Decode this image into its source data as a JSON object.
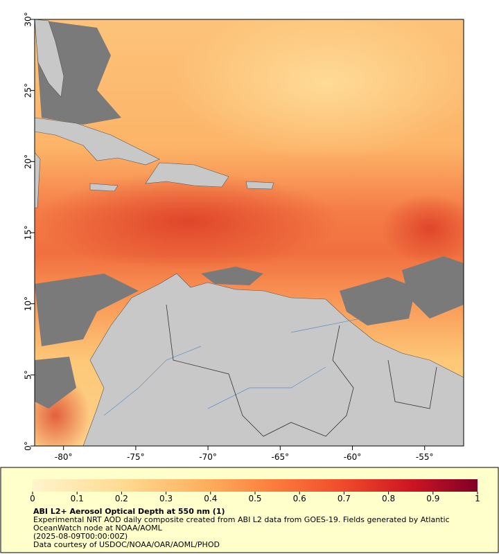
{
  "map": {
    "xlim": [
      -82,
      -52.3
    ],
    "ylim": [
      0,
      30
    ],
    "xticks": [
      {
        "value": -80,
        "label": "-80°"
      },
      {
        "value": -75,
        "label": "-75°"
      },
      {
        "value": -70,
        "label": "-70°"
      },
      {
        "value": -65,
        "label": "-65°"
      },
      {
        "value": -60,
        "label": "-60°"
      },
      {
        "value": -55,
        "label": "-55°"
      }
    ],
    "yticks": [
      {
        "value": 0,
        "label": "0°"
      },
      {
        "value": 5,
        "label": "5°"
      },
      {
        "value": 10,
        "label": "10°"
      },
      {
        "value": 15,
        "label": "15°"
      },
      {
        "value": 20,
        "label": "20°"
      },
      {
        "value": 25,
        "label": "25°"
      },
      {
        "value": 30,
        "label": "30°"
      }
    ]
  },
  "colorbar": {
    "lim": [
      0,
      1
    ],
    "ticks": [
      0,
      0.1,
      0.2,
      0.3,
      0.4,
      0.5,
      0.6,
      0.7,
      0.8,
      0.9,
      1
    ]
  },
  "legend": {
    "title": "ABI L2+ Aerosol Optical Depth at 550 nm (1)",
    "description": "Experimental NRT AOD daily composite created from ABI L2 data from GOES-19. Fields generated by Atlantic OceanWatch node at NOAA/AOML",
    "time": "(2025-08-09T00:00:00Z)",
    "credit": "Data courtesy of USDOC/NOAA/OAR/AOML/PHOD"
  }
}
